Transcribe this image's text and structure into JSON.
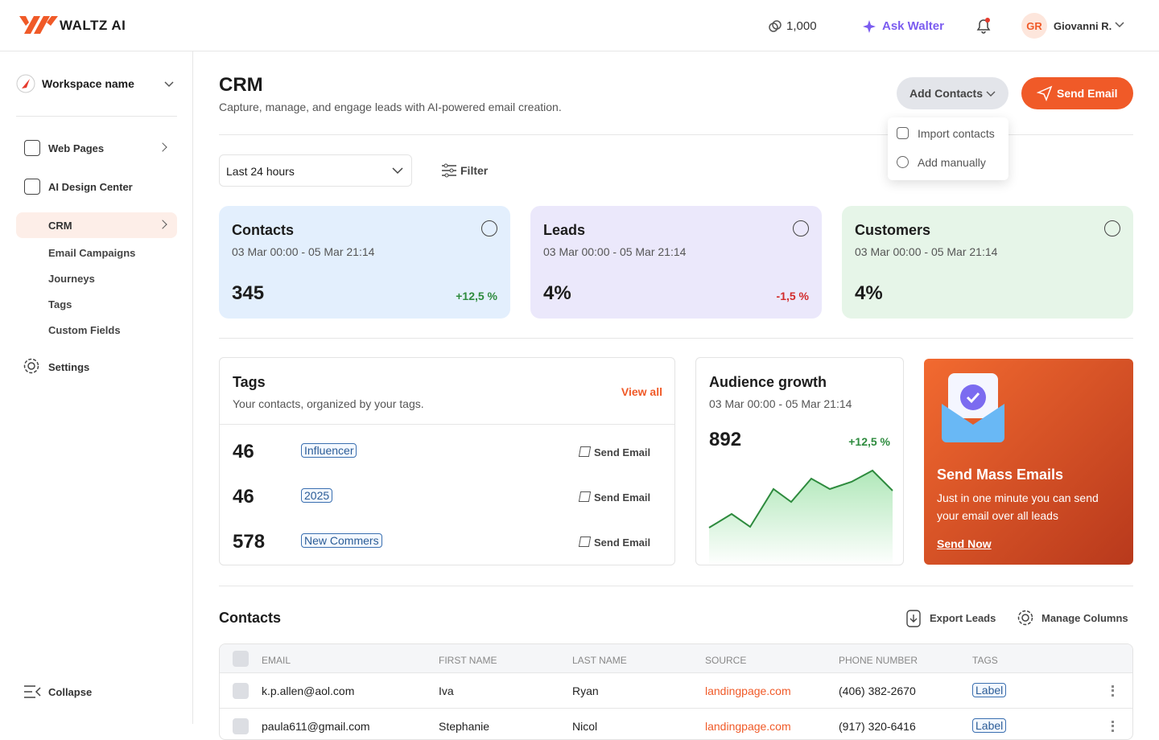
{
  "header": {
    "brand": "WALTZ AI",
    "credits": "1,000",
    "ask": "Ask Walter",
    "initials": "GR",
    "user": "Giovanni R."
  },
  "sidebar": {
    "workspace": "Workspace name",
    "nav": [
      "Web Pages",
      "AI Design Center",
      "CRM"
    ],
    "crm_sub": [
      "Email Campaigns",
      "Journeys",
      "Tags",
      "Custom Fields"
    ],
    "settings": "Settings",
    "collapse": "Collapse"
  },
  "main": {
    "title": "CRM",
    "subtitle": "Capture, manage, and engage leads with AI-powered email creation.",
    "add_contacts": "Add Contacts",
    "send_email": "Send Email",
    "add_menu": [
      "Import contacts",
      "Add manually"
    ],
    "period": "Last 24 hours",
    "filter": "Filter"
  },
  "stats": [
    {
      "title": "Contacts",
      "range": "03 Mar 00:00 - 05 Mar 21:14",
      "value": "345",
      "change": "+12,5 %"
    },
    {
      "title": "Leads",
      "range": "03 Mar 00:00 - 05 Mar 21:14",
      "value": "4%",
      "change": "-1,5 %"
    },
    {
      "title": "Customers",
      "range": "03 Mar 00:00 - 05 Mar 21:14",
      "value": "4%"
    }
  ],
  "tags": {
    "title": "Tags",
    "subtitle": "Your contacts, organized by your tags.",
    "view_all": "View all",
    "rows": [
      {
        "count": "46",
        "tag": "Influencer",
        "action": "Send Email"
      },
      {
        "count": "46",
        "tag": "2025",
        "action": "Send Email"
      },
      {
        "count": "578",
        "tag": "New Commers",
        "action": "Send Email"
      }
    ]
  },
  "audience": {
    "title": "Audience growth",
    "range": "03 Mar 00:00 - 05 Mar 21:14",
    "value": "892",
    "change": "+12,5 %"
  },
  "promo": {
    "title": "Send Mass Emails",
    "text": "Just in one minute you can send your email over all leads",
    "link": "Send Now"
  },
  "contacts": {
    "title": "Contacts",
    "export": "Export Leads",
    "manage": "Manage Columns",
    "columns": [
      "EMAIL",
      "FIRST NAME",
      "LAST NAME",
      "SOURCE",
      "PHONE NUMBER",
      "TAGS"
    ],
    "rows": [
      [
        "k.p.allen@aol.com",
        "Iva",
        "Ryan",
        "landingpage.com",
        "(406) 382-2670",
        "Label"
      ],
      [
        "paula611@gmail.com",
        "Stephanie",
        "Nicol",
        "landingpage.com",
        "(917) 320-6416",
        "Label"
      ]
    ]
  }
}
